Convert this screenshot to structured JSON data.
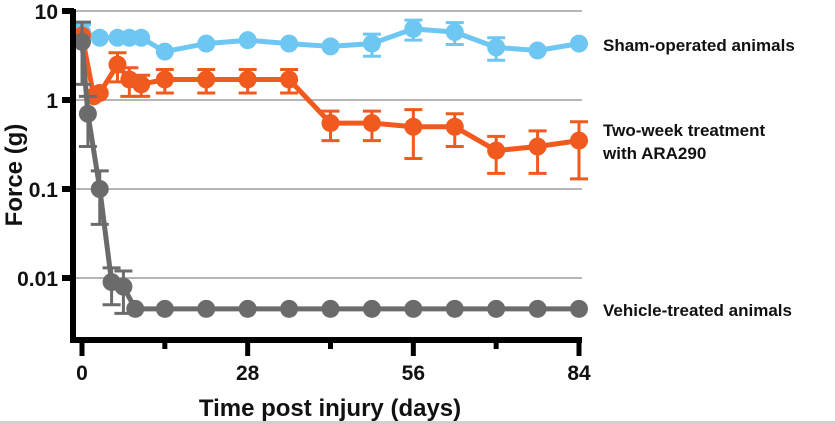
{
  "chart_data": {
    "type": "line",
    "title": "",
    "xlabel": "Time post injury (days)",
    "ylabel": "Force (g)",
    "yscale": "log",
    "xlim": [
      0,
      84
    ],
    "ylim": [
      0.0045,
      10
    ],
    "xticks": [
      0,
      28,
      56,
      84
    ],
    "xticks_labeled": [
      "0",
      "28",
      "56",
      "84"
    ],
    "xticks_minor": [
      14,
      42,
      70
    ],
    "yticks": [
      10,
      1,
      0.1,
      0.01
    ],
    "yticks_labels": [
      "10",
      "1",
      "0.1",
      "0.01"
    ],
    "grid": "horizontal at major y ticks",
    "legend": "right (direct labels)",
    "series": [
      {
        "name": "Sham-operated animals",
        "color": "#6ec6f2",
        "x": [
          0,
          3,
          6,
          8,
          10,
          14,
          21,
          28,
          35,
          42,
          49,
          56,
          63,
          70,
          77,
          84
        ],
        "y": [
          5.8,
          5.0,
          5.0,
          5.0,
          5.0,
          3.5,
          4.3,
          4.7,
          4.3,
          4.0,
          4.3,
          6.3,
          5.8,
          3.9,
          3.6,
          4.3
        ],
        "err": [
          1.2,
          0,
          0,
          0,
          0,
          0,
          0,
          0,
          0,
          0,
          1.2,
          1.6,
          1.6,
          1.1,
          0,
          0
        ]
      },
      {
        "name": "Two-week treatment with ARA290",
        "color": "#f05a1e",
        "x": [
          0,
          2,
          3,
          6,
          8,
          10,
          14,
          21,
          28,
          35,
          42,
          49,
          56,
          63,
          70,
          77,
          84
        ],
        "y": [
          5.3,
          1.1,
          1.2,
          2.5,
          1.7,
          1.5,
          1.7,
          1.7,
          1.7,
          1.7,
          0.55,
          0.55,
          0.5,
          0.5,
          0.27,
          0.3,
          0.35
        ],
        "err": [
          0,
          0,
          0,
          0.9,
          0.6,
          0.4,
          0.5,
          0.5,
          0.5,
          0.5,
          0.2,
          0.2,
          0.28,
          0.2,
          0.12,
          0.15,
          0.22
        ]
      },
      {
        "name": "Vehicle-treated animals",
        "color": "#6b6b6b",
        "x": [
          0,
          1,
          3,
          5,
          7,
          9,
          14,
          21,
          28,
          35,
          42,
          49,
          56,
          63,
          70,
          77,
          84
        ],
        "y": [
          4.5,
          0.7,
          0.1,
          0.009,
          0.008,
          0.0045,
          0.0045,
          0.0045,
          0.0045,
          0.0045,
          0.0045,
          0.0045,
          0.0045,
          0.0045,
          0.0045,
          0.0045,
          0.0045
        ],
        "err": [
          3.0,
          0.4,
          0.06,
          0.004,
          0.004,
          0,
          0,
          0,
          0,
          0,
          0,
          0,
          0,
          0,
          0,
          0,
          0
        ]
      }
    ],
    "legend_labels": {
      "sham": "Sham-operated animals",
      "ara290_line1": "Two-week treatment",
      "ara290_line2": "with ARA290",
      "vehicle": "Vehicle-treated animals"
    }
  }
}
